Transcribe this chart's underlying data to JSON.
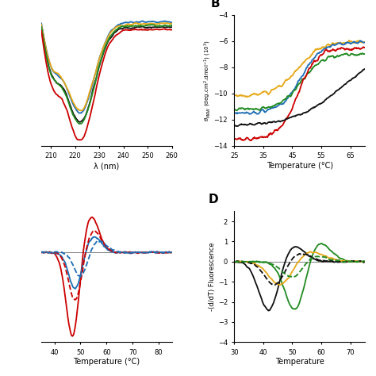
{
  "panel_A": {
    "xlim": [
      206,
      260
    ],
    "xticks": [
      210,
      220,
      230,
      240,
      250,
      260
    ],
    "xlabel": "λ (nm)"
  },
  "panel_B": {
    "xlim": [
      25,
      70
    ],
    "ylim": [
      -14,
      -4
    ],
    "xticks": [
      25,
      35,
      45,
      55,
      65
    ],
    "yticks": [
      -14,
      -12,
      -10,
      -8,
      -6,
      -4
    ],
    "xlabel": "Temperature (°C)",
    "ylabel": "θ_MRW (deg.cm².dmol⁻¹) (10³)"
  },
  "panel_C": {
    "xlim": [
      35,
      85
    ],
    "xticks": [
      40,
      50,
      60,
      70,
      80
    ],
    "xlabel": "Temperature (°C)"
  },
  "panel_D": {
    "xlim": [
      30,
      75
    ],
    "ylim": [
      -4,
      2.5
    ],
    "xticks": [
      30,
      40,
      50,
      60,
      70
    ],
    "yticks": [
      -4,
      -3,
      -2,
      -1,
      0,
      1,
      2
    ],
    "xlabel": "Temperature",
    "ylabel": "-(d/dT) Fluorescence"
  },
  "colors": {
    "red": "#cc0000",
    "black": "#111111",
    "green": "#228B22",
    "blue": "#1e6eb5",
    "yellow": "#e6a817"
  }
}
